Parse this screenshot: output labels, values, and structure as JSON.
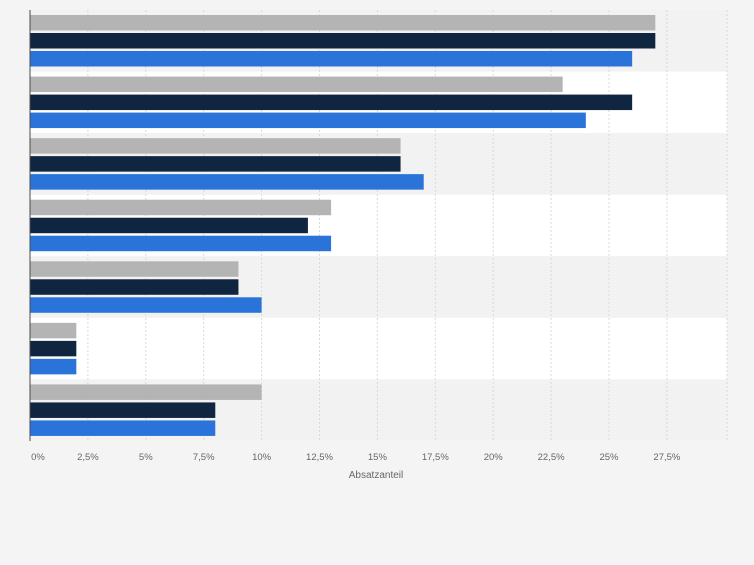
{
  "chart_data": {
    "type": "bar",
    "orientation": "horizontal",
    "xlabel": "Absatzanteil",
    "ylabel": "",
    "xlim": [
      0,
      30
    ],
    "x_ticks": [
      0,
      2.5,
      5,
      7.5,
      10,
      12.5,
      15,
      17.5,
      20,
      22.5,
      25,
      27.5
    ],
    "x_tick_labels": [
      "0%",
      "2,5%",
      "5%",
      "7,5%",
      "10%",
      "12,5%",
      "15%",
      "17,5%",
      "20%",
      "22,5%",
      "25%",
      "27,5%"
    ],
    "categories": [
      "",
      "",
      "",
      "",
      "",
      "",
      ""
    ],
    "series": [
      {
        "color": "#b4b4b4",
        "values": [
          27,
          23,
          16,
          13,
          9,
          2,
          10
        ]
      },
      {
        "color": "#10253f",
        "values": [
          27,
          26,
          16,
          12,
          9,
          2,
          8
        ]
      },
      {
        "color": "#2a73d9",
        "values": [
          26,
          24,
          17,
          13,
          10,
          2,
          8
        ]
      }
    ],
    "grid": true,
    "legend": "none",
    "colors": {
      "band_a": "#ffffff",
      "band_b": "#f2f2f2",
      "gridline": "#d9d9d9",
      "axis": "#4a4a4a",
      "tick_text": "#666666"
    }
  }
}
